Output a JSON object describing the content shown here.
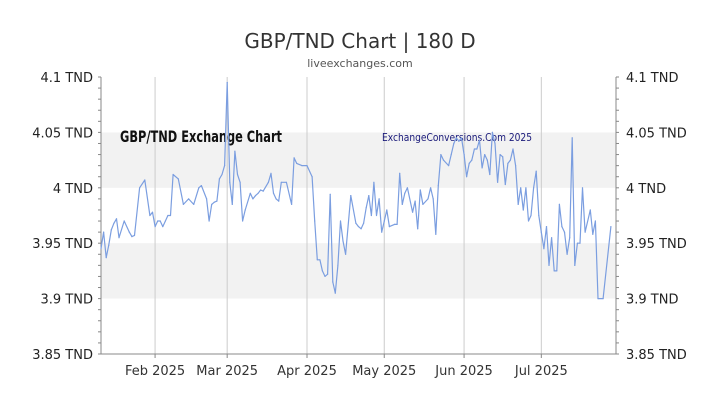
{
  "title": "GBP/TND Chart | 180 D",
  "subtitle": "liveexchanges.com",
  "watermark_left": "GBP/TND Exchange Chart",
  "watermark_right": "ExchangeConversions.Com 2025",
  "colors": {
    "line": "#7b9ee0",
    "band": "#f2f2f2",
    "grid": "#cccccc",
    "axis": "#888888"
  },
  "chart_data": {
    "type": "line",
    "title": "GBP/TND Chart | 180 D",
    "xlabel": "",
    "ylabel": "",
    "ylim": [
      3.85,
      4.1
    ],
    "y_ticks": [
      "4.1 TND",
      "4.05 TND",
      "4 TND",
      "3.95 TND",
      "3.9 TND",
      "3.85 TND"
    ],
    "y_tick_values": [
      4.1,
      4.05,
      4.0,
      3.95,
      3.9,
      3.85
    ],
    "x_ticks": [
      "Feb 2025",
      "Mar 2025",
      "Apr 2025",
      "May 2025",
      "Jun 2025",
      "Jul 2025"
    ],
    "x_tick_dates": [
      "2025-02-01",
      "2025-03-01",
      "2025-04-01",
      "2025-05-01",
      "2025-06-01",
      "2025-07-01"
    ],
    "x_range": [
      "2025-01-11",
      "2025-07-30"
    ],
    "grid": true,
    "series": [
      {
        "x": [
          "2025-01-11",
          "2025-01-12",
          "2025-01-13",
          "2025-01-14",
          "2025-01-15",
          "2025-01-16",
          "2025-01-17",
          "2025-01-18",
          "2025-01-20",
          "2025-01-22",
          "2025-01-23",
          "2025-01-24",
          "2025-01-26",
          "2025-01-28",
          "2025-01-30",
          "2025-01-31",
          "2025-02-01",
          "2025-02-02",
          "2025-02-03",
          "2025-02-04",
          "2025-02-05",
          "2025-02-06",
          "2025-02-07",
          "2025-02-08",
          "2025-02-10",
          "2025-02-12",
          "2025-02-14",
          "2025-02-16",
          "2025-02-18",
          "2025-02-19",
          "2025-02-21",
          "2025-02-22",
          "2025-02-23",
          "2025-02-24",
          "2025-02-25",
          "2025-02-26",
          "2025-02-27",
          "2025-02-28",
          "2025-03-01",
          "2025-03-02",
          "2025-03-03",
          "2025-03-04",
          "2025-03-05",
          "2025-03-06",
          "2025-03-07",
          "2025-03-08",
          "2025-03-10",
          "2025-03-11",
          "2025-03-12",
          "2025-03-13",
          "2025-03-14",
          "2025-03-15",
          "2025-03-17",
          "2025-03-18",
          "2025-03-19",
          "2025-03-20",
          "2025-03-21",
          "2025-03-22",
          "2025-03-24",
          "2025-03-26",
          "2025-03-27",
          "2025-03-28",
          "2025-03-30",
          "2025-04-01",
          "2025-04-03",
          "2025-04-04",
          "2025-04-05",
          "2025-04-06",
          "2025-04-07",
          "2025-04-08",
          "2025-04-09",
          "2025-04-10",
          "2025-04-11",
          "2025-04-12",
          "2025-04-13",
          "2025-04-14",
          "2025-04-15",
          "2025-04-16",
          "2025-04-18",
          "2025-04-20",
          "2025-04-21",
          "2025-04-22",
          "2025-04-23",
          "2025-04-24",
          "2025-04-25",
          "2025-04-26",
          "2025-04-27",
          "2025-04-28",
          "2025-04-29",
          "2025-04-30",
          "2025-05-01",
          "2025-05-02",
          "2025-05-03",
          "2025-05-05",
          "2025-05-06",
          "2025-05-07",
          "2025-05-08",
          "2025-05-09",
          "2025-05-10",
          "2025-05-12",
          "2025-05-13",
          "2025-05-14",
          "2025-05-15",
          "2025-05-16",
          "2025-05-18",
          "2025-05-19",
          "2025-05-20",
          "2025-05-21",
          "2025-05-22",
          "2025-05-23",
          "2025-05-24",
          "2025-05-26",
          "2025-05-27",
          "2025-05-28",
          "2025-05-29",
          "2025-05-30",
          "2025-05-31",
          "2025-06-01",
          "2025-06-02",
          "2025-06-03",
          "2025-06-04",
          "2025-06-05",
          "2025-06-06",
          "2025-06-07",
          "2025-06-08",
          "2025-06-09",
          "2025-06-10",
          "2025-06-11",
          "2025-06-12",
          "2025-06-13",
          "2025-06-14",
          "2025-06-15",
          "2025-06-16",
          "2025-06-17",
          "2025-06-18",
          "2025-06-19",
          "2025-06-20",
          "2025-06-21",
          "2025-06-22",
          "2025-06-23",
          "2025-06-24",
          "2025-06-25",
          "2025-06-26",
          "2025-06-27",
          "2025-06-28",
          "2025-06-29",
          "2025-06-30",
          "2025-07-01",
          "2025-07-02",
          "2025-07-03",
          "2025-07-04",
          "2025-07-05",
          "2025-07-06",
          "2025-07-07",
          "2025-07-08",
          "2025-07-09",
          "2025-07-10",
          "2025-07-11",
          "2025-07-12",
          "2025-07-13",
          "2025-07-14",
          "2025-07-15",
          "2025-07-16",
          "2025-07-17",
          "2025-07-18",
          "2025-07-20",
          "2025-07-21",
          "2025-07-22",
          "2025-07-23",
          "2025-07-25",
          "2025-07-28"
        ],
        "values": [
          3.945,
          3.96,
          3.937,
          3.948,
          3.962,
          3.968,
          3.972,
          3.955,
          3.97,
          3.96,
          3.956,
          3.957,
          4.0,
          4.007,
          3.975,
          3.978,
          3.965,
          3.97,
          3.97,
          3.965,
          3.97,
          3.975,
          3.975,
          4.012,
          4.008,
          3.985,
          3.99,
          3.985,
          4.0,
          4.002,
          3.99,
          3.97,
          3.985,
          3.987,
          3.988,
          4.008,
          4.012,
          4.02,
          4.095,
          4.005,
          3.985,
          4.033,
          4.012,
          4.005,
          3.97,
          3.98,
          3.995,
          3.99,
          3.993,
          3.995,
          3.998,
          3.997,
          4.005,
          4.013,
          3.995,
          3.99,
          3.988,
          4.005,
          4.005,
          3.985,
          4.027,
          4.022,
          4.02,
          4.02,
          4.01,
          3.97,
          3.935,
          3.935,
          3.925,
          3.92,
          3.922,
          3.994,
          3.915,
          3.905,
          3.93,
          3.97,
          3.952,
          3.94,
          3.993,
          3.968,
          3.965,
          3.963,
          3.968,
          3.982,
          3.993,
          3.975,
          4.005,
          3.975,
          3.99,
          3.96,
          3.97,
          3.98,
          3.965,
          3.967,
          3.967,
          4.013,
          3.985,
          3.995,
          4.0,
          3.978,
          3.988,
          3.963,
          3.998,
          3.985,
          3.99,
          4.0,
          3.99,
          3.958,
          4.002,
          4.03,
          4.025,
          4.02,
          4.03,
          4.04,
          4.045,
          4.042,
          4.045,
          4.03,
          4.01,
          4.022,
          4.025,
          4.035,
          4.035,
          4.043,
          4.018,
          4.03,
          4.025,
          4.012,
          4.05,
          4.04,
          4.005,
          4.03,
          4.028,
          4.003,
          4.022,
          4.025,
          4.035,
          4.02,
          3.985,
          4.0,
          3.98,
          4.0,
          3.97,
          3.975,
          4.0,
          4.015,
          3.975,
          3.96,
          3.945,
          3.965,
          3.93,
          3.955,
          3.925,
          3.925,
          3.985,
          3.965,
          3.96,
          3.94,
          3.955,
          4.045,
          3.93,
          3.95,
          3.95,
          4.0,
          3.96,
          3.98,
          3.958,
          3.97,
          3.9,
          3.9,
          3.965
        ]
      }
    ]
  }
}
